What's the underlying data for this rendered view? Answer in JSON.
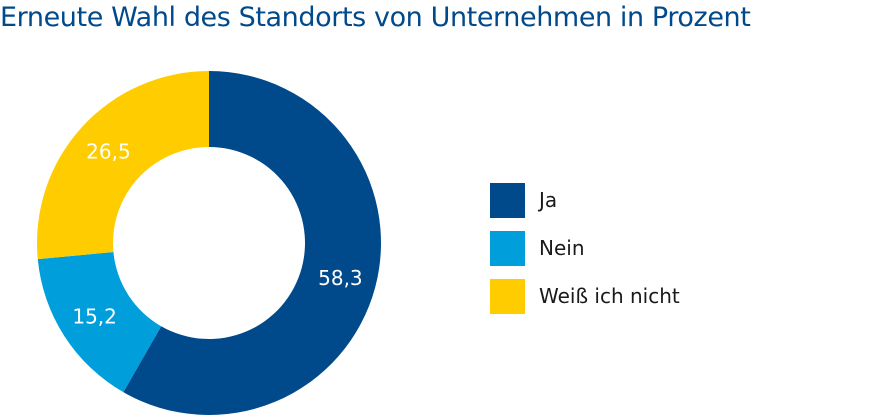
{
  "chart_data": {
    "type": "pie",
    "title": "Erneute Wahl des Standorts von Unternehmen in Prozent",
    "categories": [
      "Ja",
      "Nein",
      "Weiß ich nicht"
    ],
    "values": [
      58.3,
      15.2,
      26.5
    ],
    "value_labels": [
      "58,3",
      "15,2",
      "26,5"
    ],
    "colors": [
      "#004a8c",
      "#009fdc",
      "#ffcc00"
    ],
    "legend": "right",
    "donut": true
  },
  "style": {
    "title_color": "#004a8c"
  }
}
